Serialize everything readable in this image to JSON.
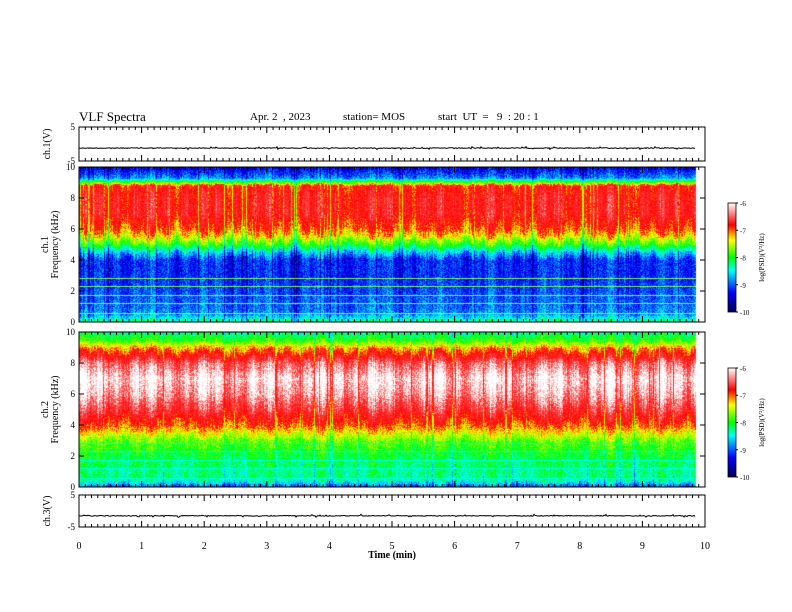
{
  "header": {
    "title": "VLF Spectra",
    "date": "Apr. 2  , 2023",
    "station": "station= MOS",
    "start": "start  UT  =   9  : 20 : 1"
  },
  "chart_data": [
    {
      "type": "line",
      "panel": "ch1-waveform",
      "ylabel": "ch.1(V)",
      "ylim": [
        -5,
        5
      ],
      "yticks": [
        "5",
        "-5"
      ],
      "xlim": [
        0,
        10
      ],
      "series": [
        {
          "values_description_level": -1.2
        }
      ]
    },
    {
      "type": "heatmap",
      "panel": "ch1-spectrogram",
      "ylabel": "ch.1\nFrequency (kHz)",
      "ylim": [
        0,
        10
      ],
      "yticks": [
        "0",
        "2",
        "4",
        "6",
        "8",
        "10"
      ],
      "xlim": [
        0,
        9.85
      ],
      "colorbar": {
        "label": "log(PSD)(V²/Hz)",
        "range": [
          -10,
          -6
        ],
        "ticks": [
          "-6",
          "-7",
          "-8",
          "-9",
          "-10"
        ]
      },
      "band_profile_log_psd": {
        "freq_khz": [
          0.0,
          0.5,
          1.0,
          2.0,
          3.0,
          4.0,
          4.5,
          5.0,
          5.5,
          6.0,
          7.0,
          8.0,
          8.8,
          9.3,
          10.0
        ],
        "log_psd": [
          -8.6,
          -9.2,
          -9.3,
          -9.4,
          -9.5,
          -9.5,
          -9.0,
          -8.2,
          -7.6,
          -7.2,
          -6.8,
          -6.8,
          -7.0,
          -9.2,
          -9.7
        ]
      }
    },
    {
      "type": "heatmap",
      "panel": "ch2-spectrogram",
      "ylabel": "ch.2\nFrequency (kHz)",
      "ylim": [
        0,
        10
      ],
      "yticks": [
        "0",
        "2",
        "4",
        "6",
        "8",
        "10"
      ],
      "xlim": [
        0,
        9.85
      ],
      "colorbar": {
        "label": "log(PSD)(V²/Hz)",
        "range": [
          -10,
          -6
        ],
        "ticks": [
          "-6",
          "-7",
          "-8",
          "-9",
          "-10"
        ]
      },
      "band_profile_log_psd": {
        "freq_khz": [
          0.0,
          0.5,
          1.0,
          2.0,
          3.0,
          3.5,
          4.0,
          5.0,
          6.0,
          7.0,
          8.0,
          9.0,
          9.5,
          10.0
        ],
        "log_psd": [
          -9.3,
          -8.6,
          -8.6,
          -8.4,
          -8.0,
          -7.6,
          -7.2,
          -6.6,
          -6.2,
          -6.0,
          -6.4,
          -7.4,
          -8.2,
          -8.6
        ]
      }
    },
    {
      "type": "line",
      "panel": "ch3-waveform",
      "ylabel": "ch.3(V)",
      "ylim": [
        -5,
        5
      ],
      "yticks": [
        "5",
        "-5"
      ],
      "xlim": [
        0,
        10
      ],
      "series": [
        {
          "values_description_level": -1.5
        }
      ]
    }
  ],
  "xaxis": {
    "label": "Time  (min)",
    "ticks": [
      "0",
      "1",
      "2",
      "3",
      "4",
      "5",
      "6",
      "7",
      "8",
      "9",
      "10"
    ]
  },
  "colors": {
    "colormap": [
      "#000066",
      "#0000ff",
      "#00ffff",
      "#00ff00",
      "#ffff00",
      "#ff0000",
      "#ffffff"
    ]
  }
}
